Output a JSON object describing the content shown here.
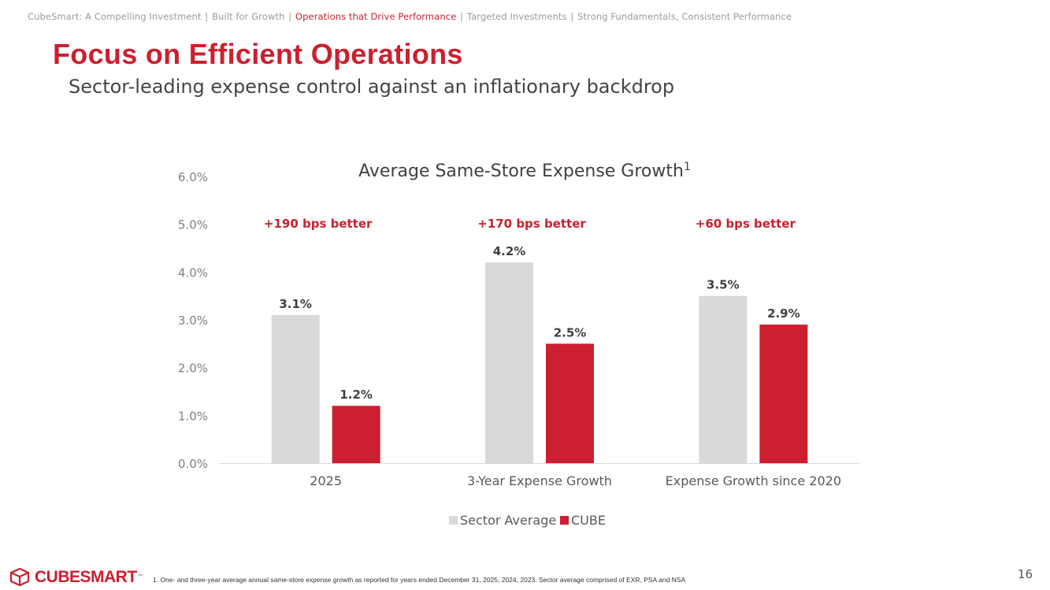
{
  "breadcrumb": {
    "items": [
      {
        "label": "CubeSmart: A Compelling Investment",
        "active": false
      },
      {
        "label": "Built for Growth",
        "active": false
      },
      {
        "label": "Operations that Drive Performance",
        "active": true
      },
      {
        "label": "Targeted Investments",
        "active": false
      },
      {
        "label": "Strong Fundamentals, Consistent Performance",
        "active": false
      }
    ],
    "separator": "|"
  },
  "page": {
    "title": "Focus on Efficient Operations",
    "subtitle": "Sector-leading expense control against an inflationary backdrop",
    "page_number": "16",
    "footnote": "1.    One- and three-year average annual same-store expense growth as reported for years ended December 31, 2025, 2024, 2023. Sector average comprised of EXR, PSA and NSA"
  },
  "logo": {
    "text": "CUBESMART",
    "tm": "™"
  },
  "colors": {
    "accent": "#cc1f2f",
    "sector": "#d9d9d9",
    "axis_text": "#7f7f7f"
  },
  "chart_data": {
    "type": "bar",
    "title": "Average Same-Store Expense Growth",
    "title_superscript": "1",
    "categories": [
      "2025",
      "3-Year Expense Growth",
      "Expense Growth since 2020"
    ],
    "series": [
      {
        "name": "Sector Average",
        "values": [
          3.1,
          4.2,
          3.5
        ],
        "labels": [
          "3.1%",
          "4.2%",
          "3.5%"
        ],
        "color": "#d9d9d9"
      },
      {
        "name": "CUBE",
        "values": [
          1.2,
          2.5,
          2.9
        ],
        "labels": [
          "1.2%",
          "2.5%",
          "2.9%"
        ],
        "color": "#cc1f2f"
      }
    ],
    "annotations": [
      "+190 bps better",
      "+170 bps better",
      "+60 bps better"
    ],
    "ylim": [
      0,
      6
    ],
    "yticks": [
      "0.0%",
      "1.0%",
      "2.0%",
      "3.0%",
      "4.0%",
      "5.0%",
      "6.0%"
    ],
    "legend_position": "bottom",
    "grid": false
  }
}
